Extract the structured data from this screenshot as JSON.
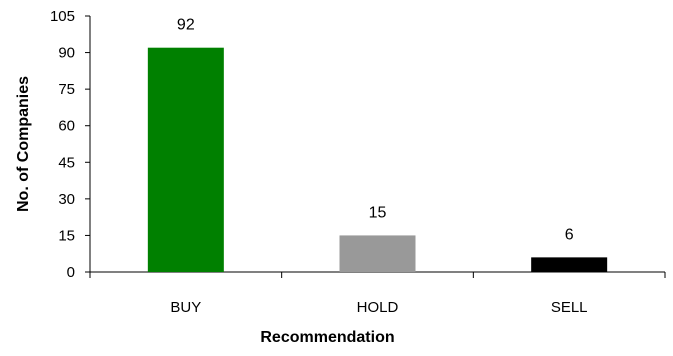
{
  "chart_data": {
    "type": "bar",
    "categories": [
      "BUY",
      "HOLD",
      "SELL"
    ],
    "values": [
      92,
      15,
      6
    ],
    "data_labels": [
      "92",
      "15",
      "6"
    ],
    "bar_colors": [
      "#008000",
      "#999999",
      "#000000"
    ],
    "xlabel": "Recommendation",
    "ylabel": "No. of Companies",
    "ylim": [
      0,
      105
    ],
    "y_ticks": [
      0,
      15,
      30,
      45,
      60,
      75,
      90,
      105
    ],
    "y_tick_labels": [
      "0",
      "15",
      "30",
      "45",
      "60",
      "75",
      "90",
      "105"
    ],
    "grid": false,
    "legend": "none"
  }
}
